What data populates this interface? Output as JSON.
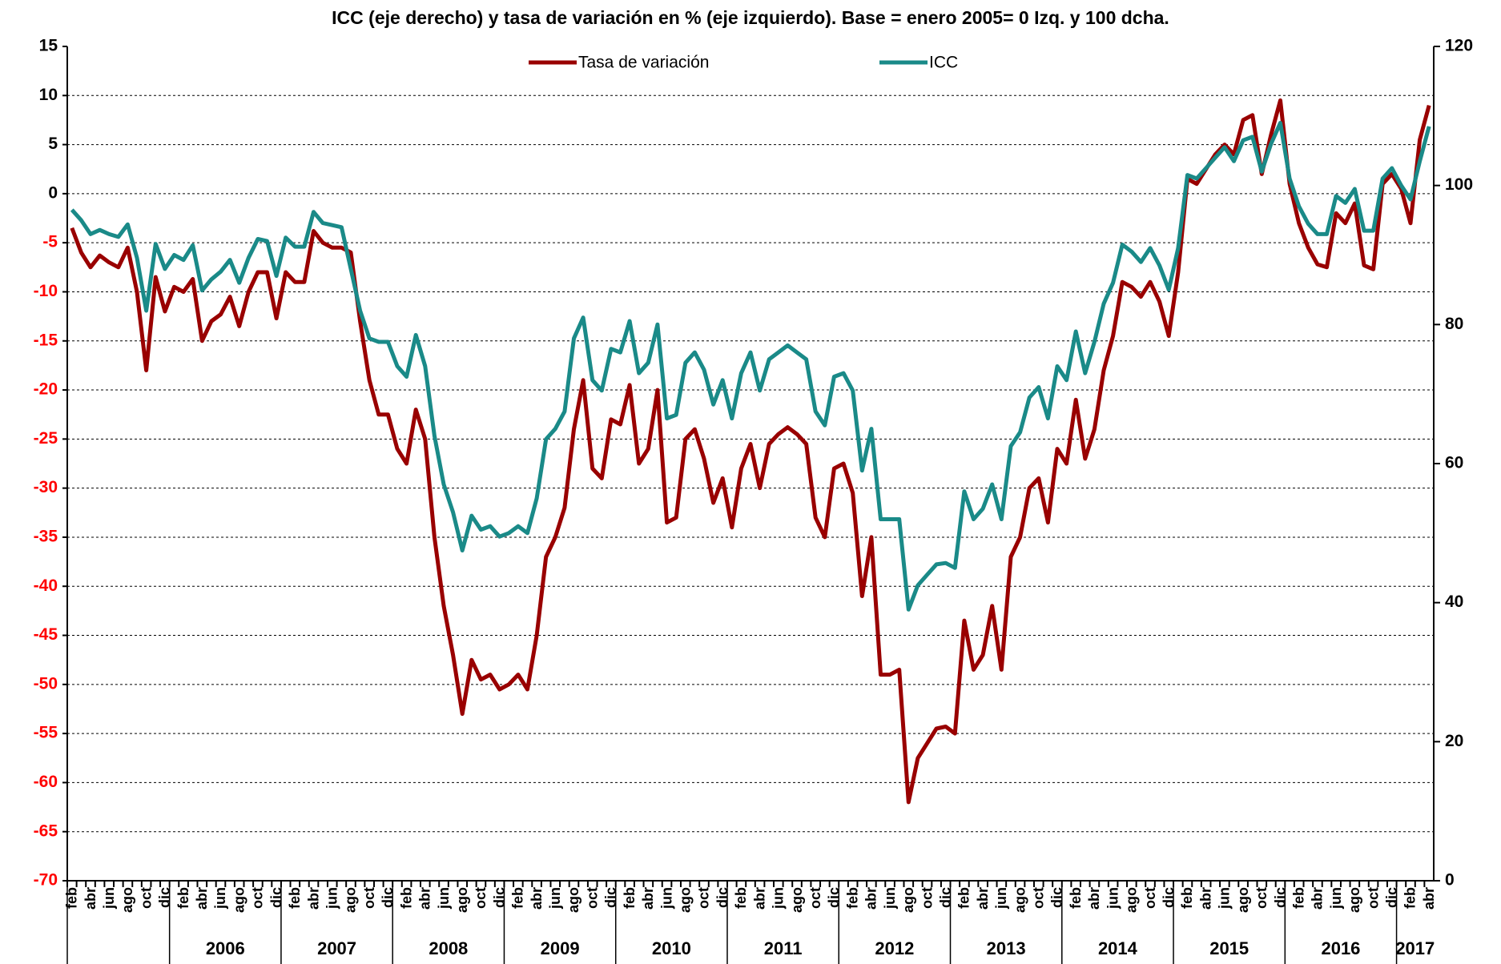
{
  "chart_data": {
    "type": "line",
    "title": "ICC (eje derecho) y tasa de variación en % (eje izquierdo). Base = enero 2005= 0 Izq. y 100 dcha.",
    "categories": [
      "feb",
      null,
      "abr",
      null,
      "jun",
      null,
      "ago",
      null,
      "oct",
      null,
      "dic",
      null,
      "feb",
      null,
      "abr",
      null,
      "jun",
      null,
      "ago",
      null,
      "oct",
      null,
      "dic",
      null,
      "feb",
      null,
      "abr",
      null,
      "jun",
      null,
      "ago",
      null,
      "oct",
      null,
      "dic",
      null,
      "feb",
      null,
      "abr",
      null,
      "jun",
      null,
      "ago",
      null,
      "oct",
      null,
      "dic",
      null,
      "feb",
      null,
      "abr",
      null,
      "jun",
      null,
      "ago",
      null,
      "oct",
      null,
      "dic",
      null,
      "feb",
      null,
      "abr",
      null,
      "jun",
      null,
      "ago",
      null,
      "oct",
      null,
      "dic",
      null,
      "feb",
      null,
      "abr",
      null,
      "jun",
      null,
      "ago",
      null,
      "oct",
      null,
      "dic",
      null,
      "feb",
      null,
      "abr",
      null,
      "jun",
      null,
      "ago",
      null,
      "oct",
      null,
      "dic",
      null,
      "feb",
      null,
      "abr",
      null,
      "jun",
      null,
      "ago",
      null,
      "oct",
      null,
      "dic",
      null,
      "feb",
      null,
      "abr",
      null,
      "jun",
      null,
      "ago",
      null,
      "oct",
      null,
      "dic",
      null,
      "feb",
      null,
      "abr",
      null,
      "jun",
      null,
      "ago",
      null,
      "oct",
      null,
      "dic",
      null,
      "feb",
      null,
      "abr",
      null,
      "jun",
      null,
      "ago",
      null,
      "oct",
      null,
      "dic",
      null,
      "feb",
      null,
      "abr"
    ],
    "years": [
      "2006",
      "2007",
      "2008",
      "2009",
      "2010",
      "2011",
      "2012",
      "2013",
      "2014",
      "2015",
      "2016",
      "2017"
    ],
    "series": [
      {
        "name": "Tasa de variación",
        "color": "#990000",
        "axis": "y",
        "values": [
          -3.5,
          -6,
          -7.5,
          -6.3,
          -7,
          -7.5,
          -5.5,
          -10,
          -18,
          -8.5,
          -12,
          -9.5,
          -10,
          -8.7,
          -15,
          -13,
          -12.3,
          -10.5,
          -13.5,
          -10,
          -8,
          -8,
          -12.7,
          -8,
          -9,
          -9,
          -3.8,
          -5,
          -5.5,
          -5.5,
          -6,
          -13,
          -19,
          -22.5,
          -22.5,
          -26,
          -27.5,
          -22,
          -25,
          -35,
          -42,
          -47,
          -53,
          -47.5,
          -49.5,
          -49,
          -50.5,
          -50,
          -49,
          -50.5,
          -45,
          -37,
          -35,
          -32,
          -24,
          -19,
          -28,
          -29,
          -23,
          -23.5,
          -19.5,
          -27.5,
          -26,
          -20,
          -33.5,
          -33,
          -25,
          -24,
          -27,
          -31.5,
          -29,
          -34,
          -28,
          -25.5,
          -30,
          -25.5,
          -24.5,
          -23.8,
          -24.5,
          -25.5,
          -33,
          -35,
          -28,
          -27.5,
          -30.5,
          -41,
          -35,
          -49,
          -49,
          -48.5,
          -62,
          -57.5,
          -56,
          -54.5,
          -54.3,
          -55,
          -43.5,
          -48.5,
          -47,
          -42,
          -48.5,
          -37,
          -35,
          -30,
          -29,
          -33.5,
          -26,
          -27.5,
          -21,
          -27,
          -24,
          -18,
          -14.5,
          -9,
          -9.5,
          -10.5,
          -9,
          -11,
          -14.5,
          -8,
          1.5,
          1,
          2.5,
          4,
          5,
          4,
          7.5,
          8,
          2,
          6,
          9.5,
          1,
          -3,
          -5.5,
          -7.2,
          -7.5,
          -2,
          -3,
          -1,
          -7.3,
          -7.7,
          1,
          2,
          0.5,
          -3,
          5.5,
          9
        ]
      },
      {
        "name": "ICC",
        "color": "#1a8a88",
        "axis": "y2",
        "values": [
          96.5,
          95,
          93,
          93.6,
          93,
          92.6,
          94.4,
          89.6,
          82,
          91.6,
          88,
          90,
          89.3,
          91.4,
          84.9,
          86.5,
          87.6,
          89.3,
          86,
          89.6,
          92.3,
          92,
          87,
          92.5,
          91.2,
          91.2,
          96.2,
          94.6,
          94.3,
          94,
          88,
          82,
          78,
          77.5,
          77.5,
          74,
          72.5,
          78.5,
          74,
          64,
          57,
          53,
          47.5,
          52.5,
          50.5,
          51,
          49.5,
          50,
          51,
          50,
          55,
          63.5,
          65,
          67.5,
          78,
          81,
          72,
          70.5,
          76.5,
          76,
          80.5,
          73,
          74.5,
          80,
          66.5,
          67,
          74.5,
          76,
          73.5,
          68.5,
          72,
          66.5,
          73,
          76,
          70.5,
          75,
          76,
          77,
          76,
          75,
          67.5,
          65.5,
          72.5,
          73,
          70.5,
          59,
          65,
          52,
          52,
          52,
          39,
          42.5,
          44,
          45.5,
          45.7,
          45,
          56,
          52,
          53.5,
          57,
          52,
          62.5,
          64.5,
          69.5,
          71,
          66.5,
          74,
          72,
          79,
          73,
          77.5,
          83,
          86,
          91.5,
          90.5,
          89,
          91,
          88.5,
          85,
          91,
          101.5,
          101,
          102.5,
          104,
          105.5,
          103.5,
          106.5,
          107,
          102,
          106,
          109,
          101,
          97,
          94.5,
          93,
          93,
          98.5,
          97.5,
          99.5,
          93.5,
          93.5,
          101,
          102.5,
          100,
          98,
          103.5,
          108.5
        ]
      }
    ],
    "ylim": [
      -70,
      15
    ],
    "yticks": [
      -70,
      -65,
      -60,
      -55,
      -50,
      -45,
      -40,
      -35,
      -30,
      -25,
      -20,
      -15,
      -10,
      -5,
      0,
      5,
      10,
      15
    ],
    "y2lim": [
      0,
      120
    ],
    "y2ticks": [
      0,
      20,
      40,
      60,
      80,
      100,
      120
    ],
    "negative_tick_color": "#ff0000",
    "grid": true,
    "legend": "top"
  }
}
